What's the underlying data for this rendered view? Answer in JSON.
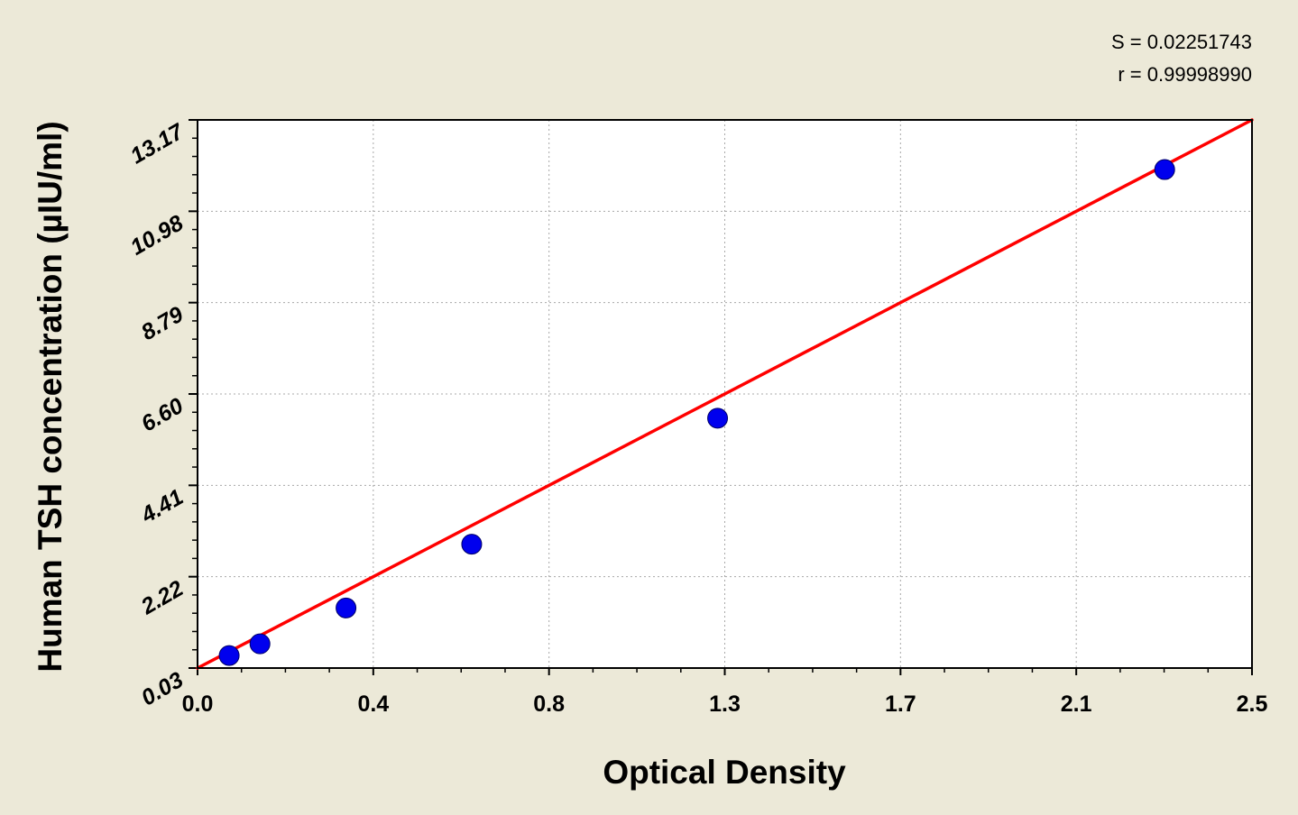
{
  "chart_data": {
    "type": "scatter",
    "title": "",
    "xlabel": "Optical Density",
    "ylabel": "Human TSH  concentration (µIU/ml)",
    "xlim": [
      0.0,
      2.5
    ],
    "ylim": [
      0.03,
      13.17
    ],
    "x_ticks": [
      "0.0",
      "0.4",
      "0.8",
      "1.3",
      "1.7",
      "2.1",
      "2.5"
    ],
    "y_ticks": [
      "0.03",
      "2.22",
      "4.41",
      "6.60",
      "8.79",
      "10.98",
      "13.17"
    ],
    "grid": true,
    "series": [
      {
        "type": "scatter",
        "color": "#0000EE",
        "x": [
          0.075,
          0.148,
          0.352,
          0.65,
          1.233,
          2.293
        ],
        "y": [
          0.33,
          0.61,
          1.47,
          3.0,
          6.02,
          11.98
        ]
      },
      {
        "type": "line",
        "color": "#FF0000",
        "x": [
          0.0,
          2.5
        ],
        "y": [
          0.03,
          13.17
        ]
      }
    ],
    "annotations": {
      "s_value": "S = 0.02251743",
      "r_value": "r = 0.99998990"
    }
  }
}
